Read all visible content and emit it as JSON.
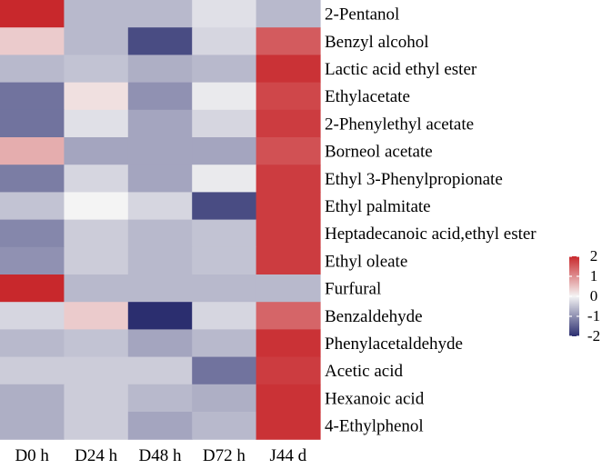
{
  "chart_data": {
    "type": "heatmap",
    "title": "",
    "xlabel": "",
    "ylabel": "",
    "columns": [
      "D0 h",
      "D24 h",
      "D48 h",
      "D72 h",
      "J44 d"
    ],
    "rows": [
      "2-Pentanol",
      "Benzyl alcohol",
      "Lactic acid ethyl ester",
      "Ethylacetate",
      "2-Phenylethyl acetate",
      "Borneol acetate",
      "Ethyl 3-Phenylpropionate",
      "Ethyl palmitate",
      "Heptadecanoic acid,ethyl ester",
      "Ethyl oleate",
      "Furfural",
      "Benzaldehyde",
      "Phenylacetaldehyde",
      "Acetic acid",
      "Hexanoic acid",
      "4-Ethylphenol"
    ],
    "values": [
      [
        2.0,
        -0.6,
        -0.6,
        -0.2,
        -0.6
      ],
      [
        0.4,
        -0.6,
        -1.7,
        -0.3,
        1.5
      ],
      [
        -0.6,
        -0.5,
        -0.7,
        -0.6,
        1.9
      ],
      [
        -1.3,
        0.2,
        -1.0,
        -0.1,
        1.7
      ],
      [
        -1.3,
        -0.2,
        -0.8,
        -0.3,
        1.8
      ],
      [
        0.7,
        -0.8,
        -0.8,
        -0.8,
        1.6
      ],
      [
        -1.2,
        -0.3,
        -0.8,
        -0.1,
        1.8
      ],
      [
        -0.5,
        0.0,
        -0.3,
        -1.7,
        1.8
      ],
      [
        -1.1,
        -0.4,
        -0.6,
        -0.5,
        1.8
      ],
      [
        -1.0,
        -0.4,
        -0.6,
        -0.5,
        1.8
      ],
      [
        2.0,
        -0.6,
        -0.6,
        -0.6,
        -0.6
      ],
      [
        -0.3,
        0.4,
        -2.0,
        -0.3,
        1.4
      ],
      [
        -0.6,
        -0.5,
        -0.8,
        -0.6,
        1.9
      ],
      [
        -0.4,
        -0.4,
        -0.4,
        -1.3,
        1.8
      ],
      [
        -0.7,
        -0.4,
        -0.6,
        -0.7,
        1.9
      ],
      [
        -0.7,
        -0.4,
        -0.8,
        -0.6,
        1.9
      ]
    ],
    "colorscale": {
      "min": -2,
      "max": 2,
      "ticks": [
        2,
        1,
        0,
        -1,
        -2
      ],
      "tick_labels": [
        "2",
        "1",
        "0",
        "-1",
        "-2"
      ],
      "low_color": "#2b2e6f",
      "mid_color": "#f4f4f4",
      "high_color": "#c8282c"
    },
    "legend": "right"
  }
}
